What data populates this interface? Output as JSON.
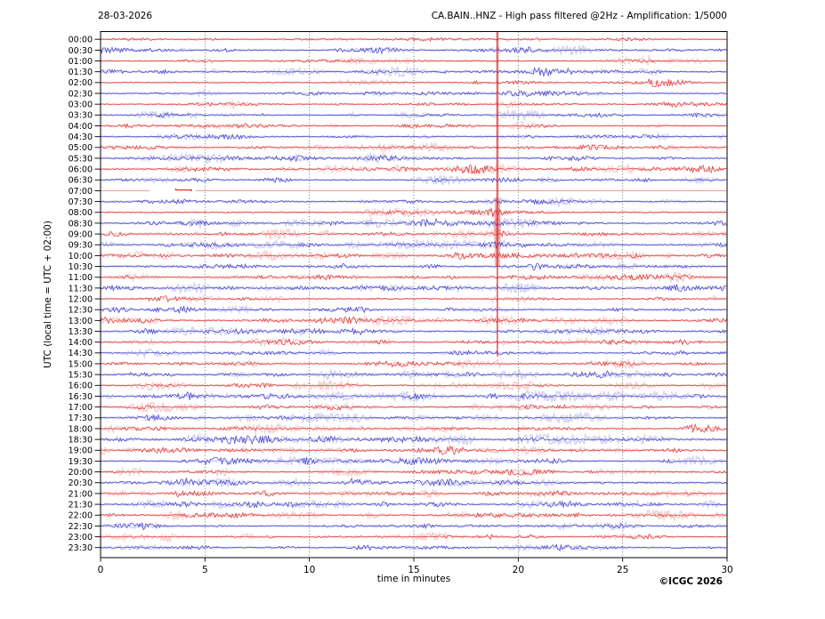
{
  "header": {
    "date": "28-03-2026",
    "title": "CA.BAIN..HNZ - High pass filtered @2Hz - Amplification: 1/5000"
  },
  "ylabel": "UTC (local time = UTC + 02:00)",
  "footer": {
    "xlabel": "time in minutes",
    "copyright": "©ICGC 2026"
  },
  "chart_data": {
    "type": "line",
    "subtype": "helicorder-seismogram",
    "station": "CA.BAIN..HNZ",
    "filter": "High pass filtered @2Hz",
    "amplification": "1/5000",
    "date": "28-03-2026",
    "xlabel": "time in minutes",
    "ylabel": "UTC (local time = UTC + 02:00)",
    "xlim": [
      0,
      30
    ],
    "x_ticks": [
      0,
      5,
      10,
      15,
      20,
      25,
      30
    ],
    "grid_x": [
      5,
      10,
      15,
      20,
      25
    ],
    "row_interval_minutes": 30,
    "grid_on": true,
    "legend": null,
    "colors": {
      "red": "#dc3232",
      "blue": "#3c3cc8",
      "grid": "#555555",
      "frame": "#000000"
    },
    "rows": [
      {
        "label": "00:00",
        "color": "red",
        "noise": 0.7
      },
      {
        "label": "00:30",
        "color": "blue",
        "noise": 1.0
      },
      {
        "label": "01:00",
        "color": "red",
        "noise": 0.9
      },
      {
        "label": "01:30",
        "color": "blue",
        "noise": 1.1
      },
      {
        "label": "02:00",
        "color": "red",
        "noise": 0.8
      },
      {
        "label": "02:30",
        "color": "blue",
        "noise": 0.9
      },
      {
        "label": "03:00",
        "color": "red",
        "noise": 0.8
      },
      {
        "label": "03:30",
        "color": "blue",
        "noise": 0.9
      },
      {
        "label": "04:00",
        "color": "red",
        "noise": 0.8
      },
      {
        "label": "04:30",
        "color": "blue",
        "noise": 1.0
      },
      {
        "label": "05:00",
        "color": "red",
        "noise": 0.9
      },
      {
        "label": "05:30",
        "color": "blue",
        "noise": 1.0
      },
      {
        "label": "06:00",
        "color": "red",
        "noise": 1.3
      },
      {
        "label": "06:30",
        "color": "blue",
        "noise": 1.0
      },
      {
        "label": "07:00",
        "color": "red",
        "noise": 0.3
      },
      {
        "label": "07:30",
        "color": "blue",
        "noise": 1.0
      },
      {
        "label": "08:00",
        "color": "red",
        "noise": 1.0
      },
      {
        "label": "08:30",
        "color": "blue",
        "noise": 1.2
      },
      {
        "label": "09:00",
        "color": "red",
        "noise": 1.2
      },
      {
        "label": "09:30",
        "color": "blue",
        "noise": 1.2
      },
      {
        "label": "10:00",
        "color": "red",
        "noise": 1.3
      },
      {
        "label": "10:30",
        "color": "blue",
        "noise": 1.2
      },
      {
        "label": "11:00",
        "color": "red",
        "noise": 1.2
      },
      {
        "label": "11:30",
        "color": "blue",
        "noise": 1.0
      },
      {
        "label": "12:00",
        "color": "red",
        "noise": 0.9
      },
      {
        "label": "12:30",
        "color": "blue",
        "noise": 1.0
      },
      {
        "label": "13:00",
        "color": "red",
        "noise": 1.2
      },
      {
        "label": "13:30",
        "color": "blue",
        "noise": 1.3
      },
      {
        "label": "14:00",
        "color": "red",
        "noise": 1.0
      },
      {
        "label": "14:30",
        "color": "blue",
        "noise": 0.9
      },
      {
        "label": "15:00",
        "color": "red",
        "noise": 1.0
      },
      {
        "label": "15:30",
        "color": "blue",
        "noise": 1.1
      },
      {
        "label": "16:00",
        "color": "red",
        "noise": 1.0
      },
      {
        "label": "16:30",
        "color": "blue",
        "noise": 1.8
      },
      {
        "label": "17:00",
        "color": "red",
        "noise": 1.2
      },
      {
        "label": "17:30",
        "color": "blue",
        "noise": 1.1
      },
      {
        "label": "18:00",
        "color": "red",
        "noise": 1.1
      },
      {
        "label": "18:30",
        "color": "blue",
        "noise": 1.6
      },
      {
        "label": "19:00",
        "color": "red",
        "noise": 1.3
      },
      {
        "label": "19:30",
        "color": "blue",
        "noise": 1.1
      },
      {
        "label": "20:00",
        "color": "red",
        "noise": 0.9
      },
      {
        "label": "20:30",
        "color": "blue",
        "noise": 1.5
      },
      {
        "label": "21:00",
        "color": "red",
        "noise": 1.1
      },
      {
        "label": "21:30",
        "color": "blue",
        "noise": 1.4
      },
      {
        "label": "22:00",
        "color": "red",
        "noise": 1.1
      },
      {
        "label": "22:30",
        "color": "blue",
        "noise": 1.0
      },
      {
        "label": "23:00",
        "color": "red",
        "noise": 0.9
      },
      {
        "label": "23:30",
        "color": "blue",
        "noise": 0.8
      }
    ],
    "events": [
      {
        "type": "clipped-spike",
        "x_minutes": 19.0,
        "color": "red",
        "top_row": "00:00",
        "bottom_row": "14:30",
        "halo_from_row": "07:30",
        "halo_to_row": "10:00",
        "coda_rows": [
          "07:30",
          "08:00",
          "08:30",
          "09:00",
          "09:30"
        ],
        "description": "Large-amplitude event at ~19 min, trace clipped vertically across rows 00:00-14:30"
      },
      {
        "type": "flat-line",
        "row": "07:00",
        "color": "red",
        "segments_minutes": [
          [
            0,
            2.35
          ],
          [
            4.55,
            30
          ]
        ],
        "marker_minutes": [
          3.6,
          4.35
        ],
        "description": "Faded flat trace with data gap between 2.35 and 4.55 min and short pulse near 4 min"
      }
    ]
  }
}
